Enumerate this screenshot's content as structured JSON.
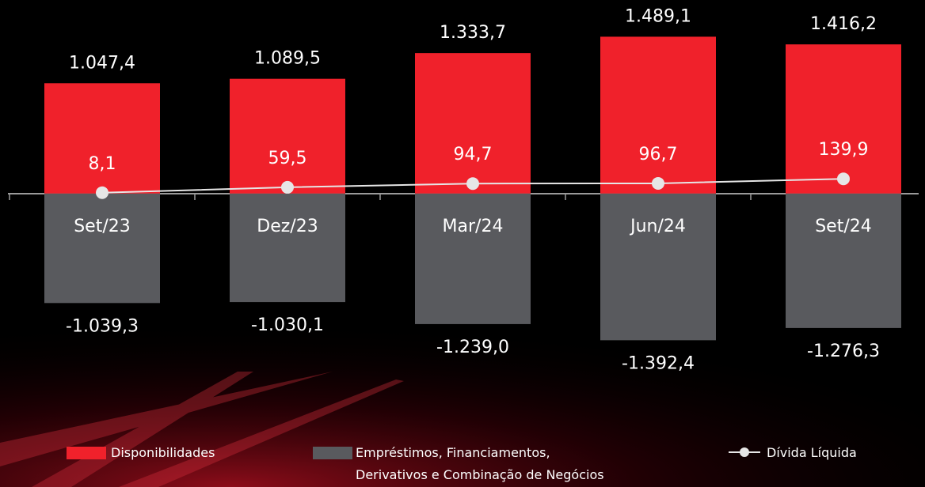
{
  "chart_data": {
    "type": "bar",
    "categories": [
      "Set/23",
      "Dez/23",
      "Mar/24",
      "Jun/24",
      "Set/24"
    ],
    "series": [
      {
        "name": "Disponibilidades",
        "color": "#f0212b",
        "values": [
          1047.4,
          1089.5,
          1333.7,
          1489.1,
          1416.2
        ],
        "value_labels": [
          "1.047,4",
          "1.089,5",
          "1.333,7",
          "1.489,1",
          "1.416,2"
        ]
      },
      {
        "name": "Empréstimos, Financiamentos, Derivativos e Combinação de Negócios",
        "color": "#595a5e",
        "values": [
          -1039.3,
          -1030.1,
          -1239.0,
          -1392.4,
          -1276.3
        ],
        "value_labels": [
          "-1.039,3",
          "-1.030,1",
          "-1.239,0",
          "-1.392,4",
          "-1.276,3"
        ]
      },
      {
        "name": "Dívida Líquida",
        "type": "line",
        "color": "#e6e6e6",
        "values": [
          8.1,
          59.5,
          94.7,
          96.7,
          139.9
        ],
        "value_labels": [
          "8,1",
          "59,5",
          "94,7",
          "96,7",
          "139,9"
        ]
      }
    ],
    "ylim": [
      -1900,
      1800
    ]
  }
}
